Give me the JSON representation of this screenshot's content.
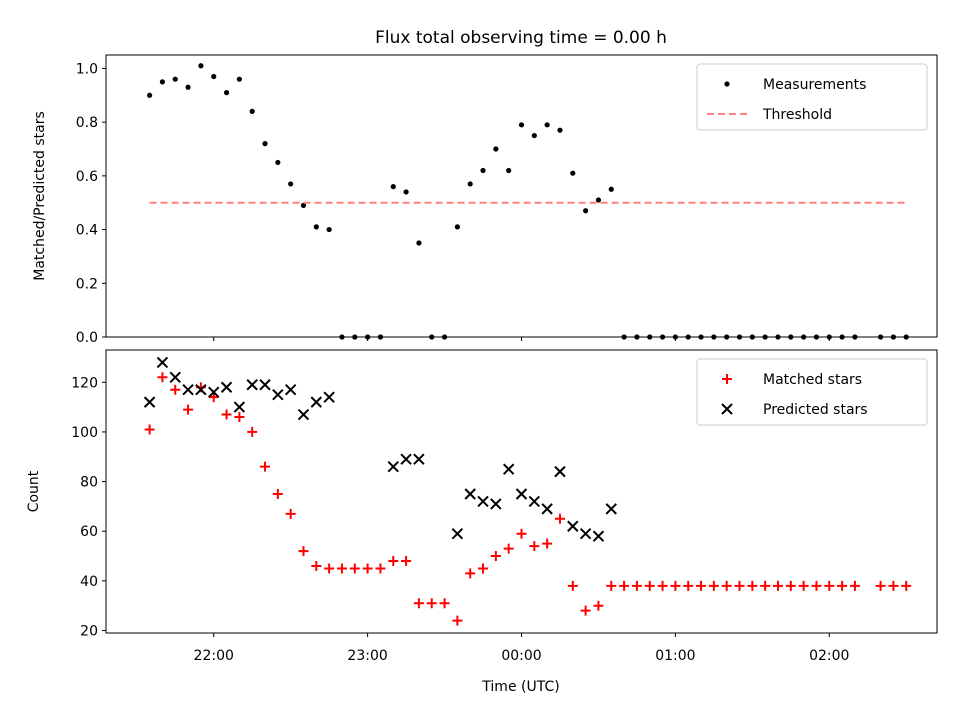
{
  "title": "Flux total observing time = 0.00 h",
  "xlabel": "Time (UTC)",
  "x_ticks": [
    "22:00",
    "23:00",
    "00:00",
    "01:00",
    "02:00"
  ],
  "chart_data": [
    {
      "type": "scatter",
      "ylabel": "Matched/Predicted stars",
      "ylim": [
        0,
        1.05
      ],
      "y_ticks": [
        "0.0",
        "0.2",
        "0.4",
        "0.6",
        "0.8",
        "1.0"
      ],
      "legend_position": "top-right",
      "legend": [
        "Measurements",
        "Threshold"
      ],
      "series": [
        {
          "name": "Measurements",
          "color": "#000000",
          "marker": "dot",
          "points": [
            [
              "21:35",
              0.9
            ],
            [
              "21:40",
              0.95
            ],
            [
              "21:45",
              0.96
            ],
            [
              "21:50",
              0.93
            ],
            [
              "21:55",
              1.01
            ],
            [
              "22:00",
              0.97
            ],
            [
              "22:05",
              0.91
            ],
            [
              "22:10",
              0.96
            ],
            [
              "22:15",
              0.84
            ],
            [
              "22:20",
              0.72
            ],
            [
              "22:25",
              0.65
            ],
            [
              "22:30",
              0.57
            ],
            [
              "22:35",
              0.49
            ],
            [
              "22:40",
              0.41
            ],
            [
              "22:45",
              0.4
            ],
            [
              "22:50",
              0.0
            ],
            [
              "22:55",
              0.0
            ],
            [
              "23:00",
              0.0
            ],
            [
              "23:05",
              0.0
            ],
            [
              "23:10",
              0.56
            ],
            [
              "23:15",
              0.54
            ],
            [
              "23:20",
              0.35
            ],
            [
              "23:25",
              0.0
            ],
            [
              "23:30",
              0.0
            ],
            [
              "23:35",
              0.41
            ],
            [
              "23:40",
              0.57
            ],
            [
              "23:45",
              0.62
            ],
            [
              "23:50",
              0.7
            ],
            [
              "23:55",
              0.62
            ],
            [
              "00:00",
              0.79
            ],
            [
              "00:05",
              0.75
            ],
            [
              "00:10",
              0.79
            ],
            [
              "00:15",
              0.77
            ],
            [
              "00:20",
              0.61
            ],
            [
              "00:25",
              0.47
            ],
            [
              "00:30",
              0.51
            ],
            [
              "00:35",
              0.55
            ],
            [
              "00:40",
              0.0
            ],
            [
              "00:45",
              0.0
            ],
            [
              "00:50",
              0.0
            ],
            [
              "00:55",
              0.0
            ],
            [
              "01:00",
              0.0
            ],
            [
              "01:05",
              0.0
            ],
            [
              "01:10",
              0.0
            ],
            [
              "01:15",
              0.0
            ],
            [
              "01:20",
              0.0
            ],
            [
              "01:25",
              0.0
            ],
            [
              "01:30",
              0.0
            ],
            [
              "01:35",
              0.0
            ],
            [
              "01:40",
              0.0
            ],
            [
              "01:45",
              0.0
            ],
            [
              "01:50",
              0.0
            ],
            [
              "01:55",
              0.0
            ],
            [
              "02:00",
              0.0
            ],
            [
              "02:05",
              0.0
            ],
            [
              "02:10",
              0.0
            ],
            [
              "02:20",
              0.0
            ],
            [
              "02:25",
              0.0
            ],
            [
              "02:30",
              0.0
            ]
          ]
        },
        {
          "name": "Threshold",
          "color": "#ff8080",
          "style": "dashed",
          "points": [
            [
              "21:35",
              0.5
            ],
            [
              "02:30",
              0.5
            ]
          ]
        }
      ]
    },
    {
      "type": "scatter",
      "ylabel": "Count",
      "ylim": [
        19,
        133
      ],
      "y_ticks": [
        "20",
        "40",
        "60",
        "80",
        "100",
        "120"
      ],
      "legend_position": "top-right",
      "legend": [
        "Matched stars",
        "Predicted stars"
      ],
      "series": [
        {
          "name": "Matched stars",
          "color": "#ff0000",
          "marker": "plus",
          "points": [
            [
              "21:35",
              101
            ],
            [
              "21:40",
              122
            ],
            [
              "21:45",
              117
            ],
            [
              "21:50",
              109
            ],
            [
              "21:55",
              118
            ],
            [
              "22:00",
              114
            ],
            [
              "22:05",
              107
            ],
            [
              "22:10",
              106
            ],
            [
              "22:15",
              100
            ],
            [
              "22:20",
              86
            ],
            [
              "22:25",
              75
            ],
            [
              "22:30",
              67
            ],
            [
              "22:35",
              52
            ],
            [
              "22:40",
              46
            ],
            [
              "22:45",
              45
            ],
            [
              "22:50",
              45
            ],
            [
              "22:55",
              45
            ],
            [
              "23:00",
              45
            ],
            [
              "23:05",
              45
            ],
            [
              "23:10",
              48
            ],
            [
              "23:15",
              48
            ],
            [
              "23:20",
              31
            ],
            [
              "23:25",
              31
            ],
            [
              "23:30",
              31
            ],
            [
              "23:35",
              24
            ],
            [
              "23:40",
              43
            ],
            [
              "23:45",
              45
            ],
            [
              "23:50",
              50
            ],
            [
              "23:55",
              53
            ],
            [
              "00:00",
              59
            ],
            [
              "00:05",
              54
            ],
            [
              "00:10",
              55
            ],
            [
              "00:15",
              65
            ],
            [
              "00:20",
              38
            ],
            [
              "00:25",
              28
            ],
            [
              "00:30",
              30
            ],
            [
              "00:35",
              38
            ],
            [
              "00:40",
              38
            ],
            [
              "00:45",
              38
            ],
            [
              "00:50",
              38
            ],
            [
              "00:55",
              38
            ],
            [
              "01:00",
              38
            ],
            [
              "01:05",
              38
            ],
            [
              "01:10",
              38
            ],
            [
              "01:15",
              38
            ],
            [
              "01:20",
              38
            ],
            [
              "01:25",
              38
            ],
            [
              "01:30",
              38
            ],
            [
              "01:35",
              38
            ],
            [
              "01:40",
              38
            ],
            [
              "01:45",
              38
            ],
            [
              "01:50",
              38
            ],
            [
              "01:55",
              38
            ],
            [
              "02:00",
              38
            ],
            [
              "02:05",
              38
            ],
            [
              "02:10",
              38
            ],
            [
              "02:20",
              38
            ],
            [
              "02:25",
              38
            ],
            [
              "02:30",
              38
            ]
          ]
        },
        {
          "name": "Predicted stars",
          "color": "#000000",
          "marker": "x",
          "points": [
            [
              "21:35",
              112
            ],
            [
              "21:40",
              128
            ],
            [
              "21:45",
              122
            ],
            [
              "21:50",
              117
            ],
            [
              "21:55",
              117
            ],
            [
              "22:00",
              116
            ],
            [
              "22:05",
              118
            ],
            [
              "22:10",
              110
            ],
            [
              "22:15",
              119
            ],
            [
              "22:20",
              119
            ],
            [
              "22:25",
              115
            ],
            [
              "22:30",
              117
            ],
            [
              "22:35",
              107
            ],
            [
              "22:40",
              112
            ],
            [
              "22:45",
              114
            ],
            [
              "23:10",
              86
            ],
            [
              "23:15",
              89
            ],
            [
              "23:20",
              89
            ],
            [
              "23:35",
              59
            ],
            [
              "23:40",
              75
            ],
            [
              "23:45",
              72
            ],
            [
              "23:50",
              71
            ],
            [
              "23:55",
              85
            ],
            [
              "00:00",
              75
            ],
            [
              "00:05",
              72
            ],
            [
              "00:10",
              69
            ],
            [
              "00:15",
              84
            ],
            [
              "00:20",
              62
            ],
            [
              "00:25",
              59
            ],
            [
              "00:30",
              58
            ],
            [
              "00:35",
              69
            ]
          ]
        }
      ]
    }
  ]
}
